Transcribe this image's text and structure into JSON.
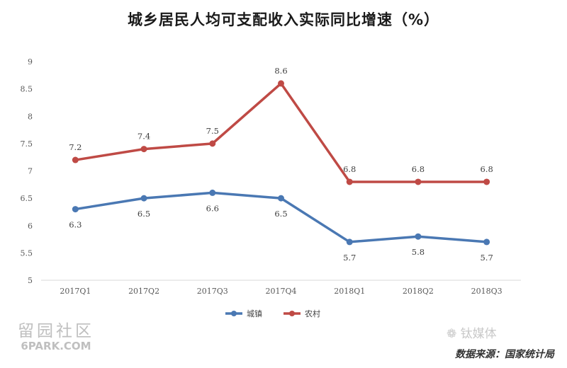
{
  "title": "城乡居民人均可支配收入实际同比增速（%）",
  "source_note": "数据来源：国家统计局",
  "watermark_left": {
    "cn": "留园社区",
    "en": "6PARK.COM"
  },
  "watermark_right": "钛媒体",
  "chart_data": {
    "type": "line",
    "categories": [
      "2017Q1",
      "2017Q2",
      "2017Q3",
      "2017Q4",
      "2018Q1",
      "2018Q2",
      "2018Q3"
    ],
    "series": [
      {
        "name": "城镇",
        "color": "#4a78b3",
        "values": [
          6.3,
          6.5,
          6.6,
          6.5,
          5.7,
          5.8,
          5.7
        ],
        "label_position": "below"
      },
      {
        "name": "农村",
        "color": "#bf4a45",
        "values": [
          7.2,
          7.4,
          7.5,
          8.6,
          6.8,
          6.8,
          6.8
        ],
        "label_position": "above"
      }
    ],
    "ylim": [
      5,
      9
    ],
    "yticks": [
      "5",
      "5.5",
      "6",
      "6.5",
      "7",
      "7.5",
      "8",
      "8.5",
      "9"
    ],
    "grid": false,
    "legend": "bottom-center"
  }
}
